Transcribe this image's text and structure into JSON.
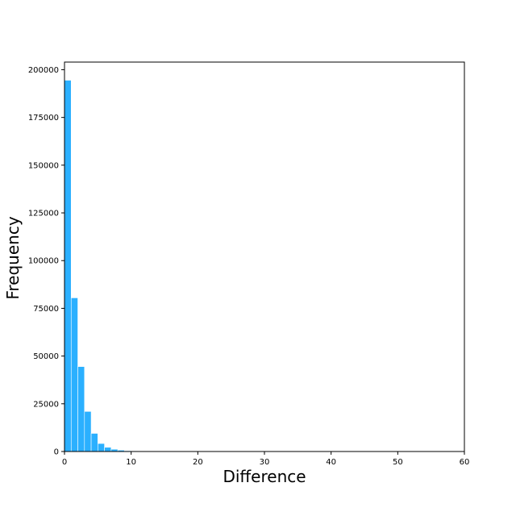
{
  "chart_data": {
    "type": "bar",
    "title": "",
    "xlabel": "Difference",
    "ylabel": "Frequency",
    "xlim": [
      0,
      60
    ],
    "ylim": [
      0,
      204000
    ],
    "bin_width": 1,
    "bins": [
      {
        "x0": 0,
        "x1": 1,
        "value": 194500
      },
      {
        "x0": 1,
        "x1": 2,
        "value": 80500
      },
      {
        "x0": 2,
        "x1": 3,
        "value": 44500
      },
      {
        "x0": 3,
        "x1": 4,
        "value": 21000
      },
      {
        "x0": 4,
        "x1": 5,
        "value": 9500
      },
      {
        "x0": 5,
        "x1": 6,
        "value": 4200
      },
      {
        "x0": 6,
        "x1": 7,
        "value": 2200
      },
      {
        "x0": 7,
        "x1": 8,
        "value": 1200
      },
      {
        "x0": 8,
        "x1": 9,
        "value": 700
      },
      {
        "x0": 9,
        "x1": 10,
        "value": 400
      },
      {
        "x0": 10,
        "x1": 11,
        "value": 250
      },
      {
        "x0": 11,
        "x1": 12,
        "value": 150
      },
      {
        "x0": 12,
        "x1": 13,
        "value": 90
      },
      {
        "x0": 13,
        "x1": 14,
        "value": 50
      }
    ],
    "x_ticks": [
      0,
      10,
      20,
      30,
      40,
      50,
      60
    ],
    "y_ticks": [
      0,
      25000,
      50000,
      75000,
      100000,
      125000,
      150000,
      175000,
      200000
    ],
    "bar_color": "#2bb0ff",
    "bar_edge_color": "#ffffff",
    "grid": false,
    "legend": "none"
  }
}
